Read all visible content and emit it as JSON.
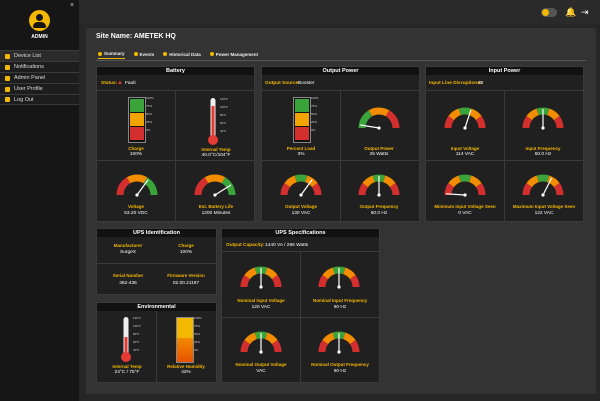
{
  "sidebar": {
    "user": "ADMIN",
    "close": "×",
    "items": [
      {
        "label": "Device List"
      },
      {
        "label": "Notifications"
      },
      {
        "label": "Admin Panel"
      },
      {
        "label": "User Profile"
      },
      {
        "label": "Log Out"
      }
    ]
  },
  "topbar": {
    "bell": "🔔",
    "logout": "⇥"
  },
  "site": {
    "label": "Site Name: AMETEK HQ"
  },
  "tabs": [
    {
      "label": "Summary"
    },
    {
      "label": "Events"
    },
    {
      "label": "Historical Data"
    },
    {
      "label": "Power Management"
    }
  ],
  "battery": {
    "title": "Battery",
    "status_label": "Status:",
    "status_value": "Fault",
    "charge_label": "Charge",
    "charge_value": "100%",
    "charge_level": 1.0,
    "temp_label": "Internal Temp",
    "temp_value": "40.0°C/104°F",
    "temp_level": 0.8,
    "voltage_label": "Voltage",
    "voltage_value": "53.20 VDC",
    "life_label": "Est. Battery Life",
    "life_value": "1200 Minutes"
  },
  "output_power": {
    "title": "Output Power",
    "source_label": "Output Source:",
    "source_value": "Booster",
    "load_label": "Percent Load",
    "load_value": "3%",
    "load_level": 0.03,
    "power_label": "Output Power",
    "power_value": "25 Watts",
    "voltage_label": "Output Voltage",
    "voltage_value": "130 VAC",
    "frequency_label": "Output Frequency",
    "frequency_value": "60.0 Hz"
  },
  "input_power": {
    "title": "Input Power",
    "disruptions_label": "Input Line Disruptions:",
    "disruptions_value": "39",
    "voltage_label": "Input Voltage",
    "voltage_value": "114 VAC",
    "frequency_label": "Input Frequency",
    "frequency_value": "60.0 Hz",
    "min_label": "Minimum Input Voltage Seen",
    "min_value": "0 VAC",
    "max_label": "Maximum Input Voltage Seen",
    "max_value": "122 VAC"
  },
  "ups_identification": {
    "title": "UPS Identification",
    "manufacturer_label": "Manufacturer",
    "manufacturer_value": "SurgeX",
    "charge_label": "Charge",
    "charge_value": "100%",
    "serial_label": "Serial Number",
    "serial_value": "362-436",
    "firmware_label": "Firmware Version",
    "firmware_value": "02.00.21197"
  },
  "environmental": {
    "title": "Environmental",
    "temp_label": "Internal Temp",
    "temp_value": "24°C / 75°F",
    "temp_level": 0.4,
    "humidity_label": "Relative Humidity",
    "humidity_value": "42%",
    "humidity_level": 0.42
  },
  "ups_specs": {
    "title": "UPS Specifications",
    "capacity_label": "Output Capacity:",
    "capacity_value": "1440 VA / 296 Watts",
    "nom_in_v_label": "Nominal Input Voltage",
    "nom_in_v_value": "120 VAC",
    "nom_in_f_label": "Nominal Input Frequency",
    "nom_in_f_value": "60 Hz",
    "nom_out_v_label": "Nominal Output Voltage",
    "nom_out_v_value": "VAC",
    "nom_out_f_label": "Nominal Output Frequency",
    "nom_out_f_value": "60 Hz"
  },
  "colors": {
    "accent": "#f5b800",
    "red": "#d32f2f",
    "orange": "#f28c00",
    "green": "#3aa33a"
  }
}
